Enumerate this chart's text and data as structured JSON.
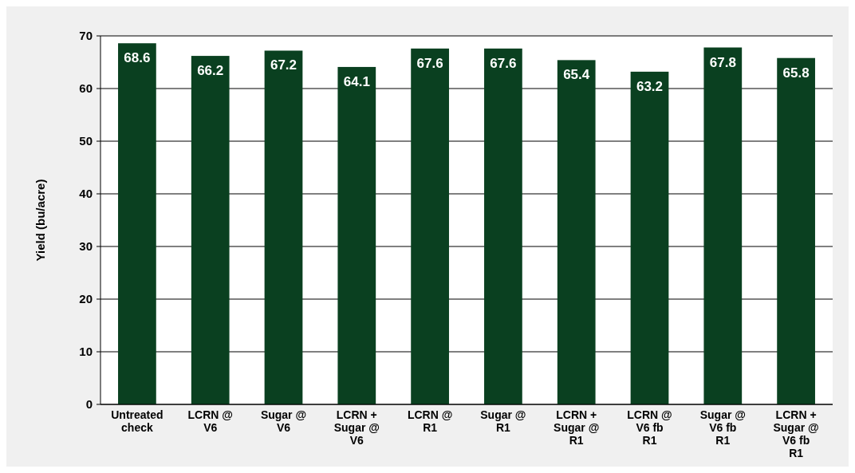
{
  "chart_data": {
    "type": "bar",
    "ylabel": "Yield (bu/acre)",
    "categories": [
      "Untreated check",
      "LCRN @ V6",
      "Sugar @ V6",
      "LCRN + Sugar @ V6",
      "LCRN @ R1",
      "Sugar @ R1",
      "LCRN + Sugar @ R1",
      "LCRN @ V6 fb R1",
      "Sugar @ V6 fb R1",
      "LCRN + Sugar @ V6 fb R1"
    ],
    "values": [
      68.6,
      66.2,
      67.2,
      64.1,
      67.6,
      67.6,
      65.4,
      63.2,
      67.8,
      65.8
    ],
    "color": "#0a4020",
    "ylim": [
      0,
      70
    ],
    "yticks": [
      0,
      10,
      20,
      30,
      40,
      50,
      60,
      70
    ],
    "grid": "y",
    "data_labels": true
  }
}
